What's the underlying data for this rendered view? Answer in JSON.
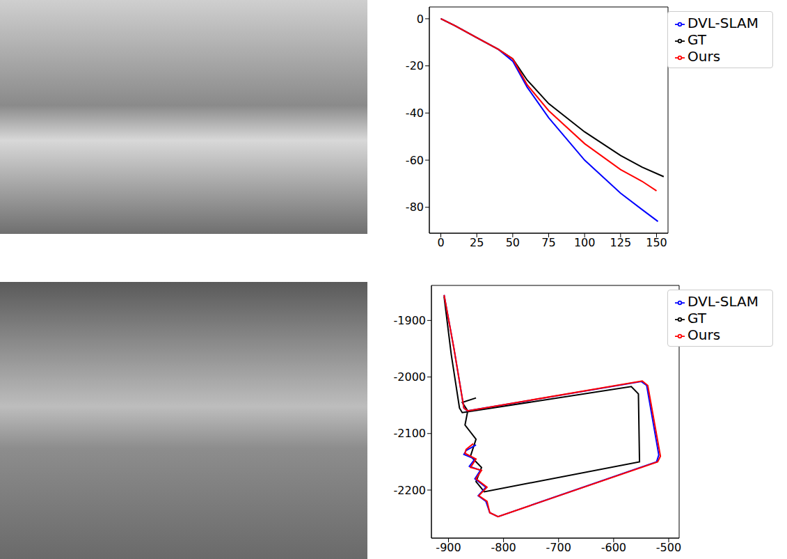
{
  "chart_data": [
    {
      "type": "line",
      "xlim": [
        -8,
        158
      ],
      "ylim": [
        -91,
        5
      ],
      "xticks": [
        0,
        25,
        50,
        75,
        100,
        125,
        150
      ],
      "yticks": [
        -80,
        -60,
        -40,
        -20,
        0
      ],
      "grid": false,
      "legend": "upper right",
      "series": [
        {
          "name": "GT",
          "color": "#000000",
          "x": [
            0,
            10,
            25,
            40,
            50,
            60,
            75,
            100,
            125,
            140,
            155
          ],
          "values": [
            0,
            -3,
            -8,
            -13,
            -17,
            -26,
            -36,
            -48,
            -58,
            -63,
            -67
          ]
        },
        {
          "name": "DVL-SLAM",
          "color": "#0000ff",
          "x": [
            0,
            10,
            25,
            40,
            50,
            60,
            75,
            100,
            125,
            140,
            151
          ],
          "values": [
            0,
            -3,
            -8,
            -13,
            -18,
            -29,
            -42,
            -60,
            -74,
            -81,
            -86
          ]
        },
        {
          "name": "Ours",
          "color": "#ff0000",
          "x": [
            0,
            10,
            25,
            40,
            50,
            60,
            75,
            100,
            125,
            140,
            150
          ],
          "values": [
            0,
            -3,
            -8,
            -13,
            -17,
            -28,
            -39,
            -53,
            -64,
            -69,
            -73
          ]
        }
      ]
    },
    {
      "type": "line",
      "xlim": [
        -931,
        -481
      ],
      "ylim": [
        -2285,
        -1838
      ],
      "xticks": [
        -900,
        -800,
        -700,
        -600,
        -500
      ],
      "yticks": [
        -2200,
        -2100,
        -2000,
        -1900
      ],
      "grid": false,
      "legend": "upper right",
      "series": [
        {
          "name": "GT",
          "color": "#000000",
          "x": [
            -908,
            -895,
            -880,
            -875,
            -568,
            -555,
            -553,
            -835,
            -850,
            -840,
            -860,
            -850,
            -870,
            -865,
            -875,
            -850
          ],
          "values": [
            -1858,
            -1960,
            -2055,
            -2063,
            -2017,
            -2030,
            -2150,
            -2203,
            -2185,
            -2160,
            -2140,
            -2110,
            -2085,
            -2060,
            -2045,
            -2037
          ]
        },
        {
          "name": "DVL-SLAM",
          "color": "#0000ff",
          "x": [
            -908,
            -890,
            -872,
            -866,
            -550,
            -540,
            -518,
            -522,
            -810,
            -825,
            -832,
            -846,
            -832,
            -852,
            -842,
            -862,
            -852,
            -872,
            -868,
            -850
          ],
          "values": [
            -1855,
            -1950,
            -2055,
            -2060,
            -2008,
            -2015,
            -2138,
            -2150,
            -2247,
            -2240,
            -2220,
            -2210,
            -2195,
            -2180,
            -2165,
            -2158,
            -2145,
            -2137,
            -2130,
            -2120
          ]
        },
        {
          "name": "Ours",
          "color": "#ff0000",
          "x": [
            -908,
            -890,
            -872,
            -865,
            -548,
            -538,
            -515,
            -520,
            -810,
            -825,
            -830,
            -845,
            -830,
            -850,
            -840,
            -860,
            -850,
            -870,
            -868,
            -855
          ],
          "values": [
            -1855,
            -1950,
            -2055,
            -2060,
            -2007,
            -2015,
            -2140,
            -2150,
            -2247,
            -2240,
            -2220,
            -2210,
            -2195,
            -2180,
            -2165,
            -2160,
            -2145,
            -2135,
            -2128,
            -2118
          ]
        }
      ]
    }
  ]
}
